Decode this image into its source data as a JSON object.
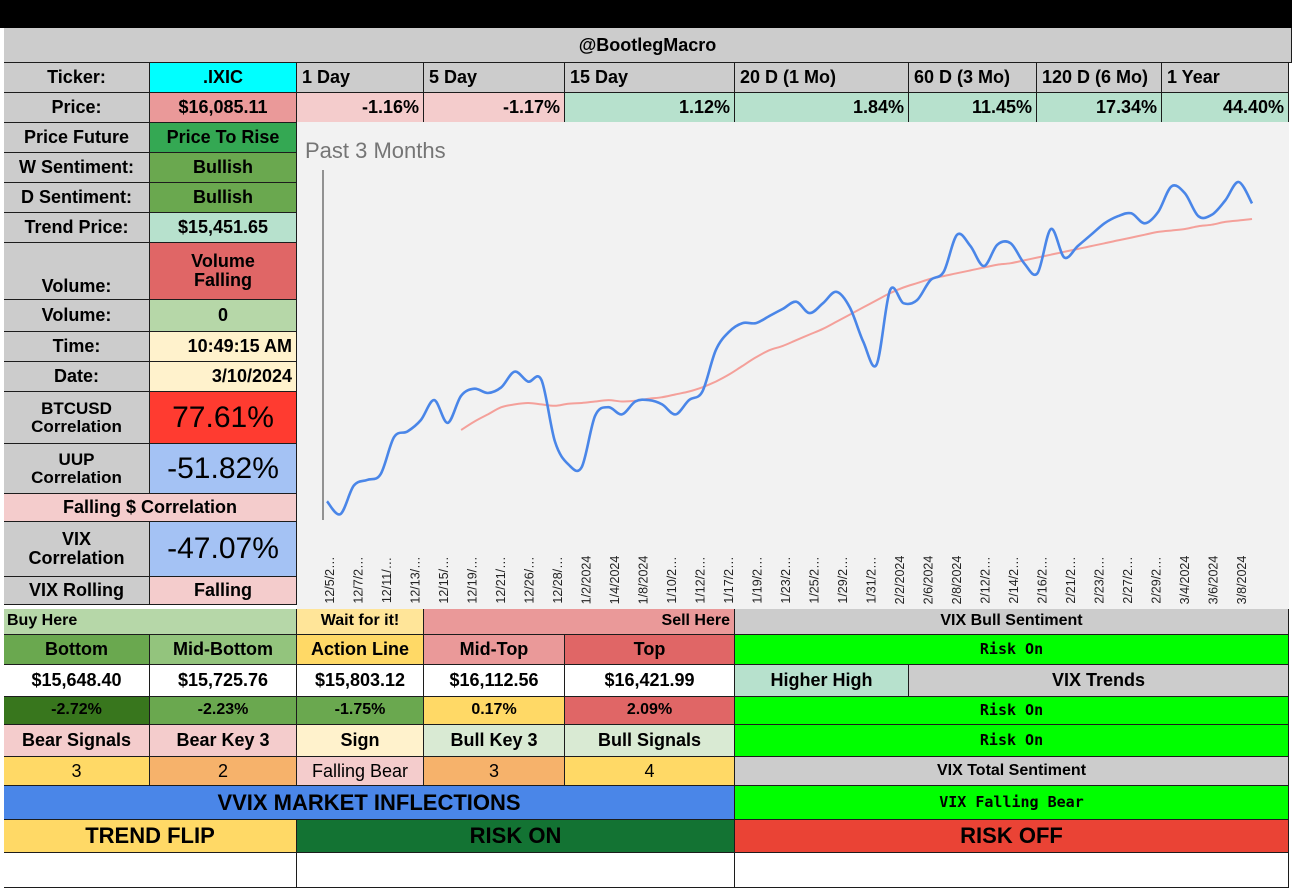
{
  "header": {
    "title": "@BootlegMacro"
  },
  "periods": {
    "ticker_label": "Ticker:",
    "ticker": ".IXIC",
    "labels": [
      "1 Day",
      "5 Day",
      "15 Day",
      "20 D (1 Mo)",
      "60 D (3 Mo)",
      "120 D (6 Mo)",
      "1 Year"
    ],
    "price_label": "Price:",
    "price": "$16,085.11",
    "changes": [
      "-1.16%",
      "-1.17%",
      "1.12%",
      "1.84%",
      "11.45%",
      "17.34%",
      "44.40%"
    ]
  },
  "side": {
    "price_future_label": "Price Future",
    "price_future": "Price To Rise",
    "w_sentiment_label": "W Sentiment:",
    "w_sentiment": "Bullish",
    "d_sentiment_label": "D Sentiment:",
    "d_sentiment": "Bullish",
    "trend_price_label": "Trend Price:",
    "trend_price": "$15,451.65",
    "volume_label": "Volume:",
    "volume_trend_1": "Volume",
    "volume_trend_2": "Falling",
    "volume2_label": "Volume:",
    "volume_value": "0",
    "time_label": "Time:",
    "time": "10:49:15 AM",
    "date_label": "Date:",
    "date": "3/10/2024",
    "btc_label_1": "BTCUSD",
    "btc_label_2": "Correlation",
    "btc_value": "77.61%",
    "uup_label_1": "UUP",
    "uup_label_2": "Correlation",
    "uup_value": "-51.82%",
    "falling_corr": "Falling $ Correlation",
    "vix_label_1": "VIX",
    "vix_label_2": "Correlation",
    "vix_value": "-47.07%",
    "vix_rolling_label": "VIX Rolling",
    "vix_rolling": "Falling"
  },
  "chart_data": {
    "type": "line",
    "title": "Past 3 Months",
    "x_labels": [
      "12/5/2…",
      "12/7/2…",
      "12/11/…",
      "12/13/…",
      "12/15/…",
      "12/19/…",
      "12/21/…",
      "12/26/…",
      "12/28/…",
      "1/2/2024",
      "1/4/2024",
      "1/8/2024",
      "1/10/2…",
      "1/12/2…",
      "1/17/2…",
      "1/19/2…",
      "1/23/2…",
      "1/25/2…",
      "1/29/2…",
      "1/31/2…",
      "2/2/2024",
      "2/6/2024",
      "2/8/2024",
      "2/12/2…",
      "2/14/2…",
      "2/16/2…",
      "2/21/2…",
      "2/23/2…",
      "2/27/2…",
      "2/29/2…",
      "3/4/2024",
      "3/6/2024",
      "3/8/2024"
    ],
    "ylim": [
      13880,
      16300
    ],
    "series": [
      {
        "color": "#4a86e8",
        "values": [
          13990,
          13900,
          14100,
          14140,
          14180,
          14440,
          14480,
          14560,
          14700,
          14540,
          14730,
          14780,
          14750,
          14790,
          14900,
          14830,
          14840,
          14410,
          14250,
          14230,
          14590,
          14650,
          14600,
          14690,
          14700,
          14670,
          14600,
          14700,
          14760,
          15050,
          15180,
          15240,
          15240,
          15290,
          15340,
          15390,
          15310,
          15380,
          15460,
          15350,
          15110,
          14950,
          15470,
          15380,
          15400,
          15540,
          15600,
          15860,
          15780,
          15640,
          15790,
          15800,
          15660,
          15590,
          15900,
          15700,
          15780,
          15860,
          15940,
          15990,
          16010,
          15940,
          16020,
          16200,
          16150,
          15990,
          16000,
          16100,
          16230,
          16080
        ]
      },
      {
        "color": "#f4a09a",
        "values": [
          14490,
          14550,
          14600,
          14650,
          14670,
          14680,
          14670,
          14660,
          14675,
          14680,
          14690,
          14700,
          14690,
          14695,
          14710,
          14720,
          14740,
          14760,
          14790,
          14830,
          14880,
          14940,
          15000,
          15050,
          15080,
          15120,
          15160,
          15200,
          15250,
          15300,
          15350,
          15400,
          15450,
          15490,
          15520,
          15550,
          15570,
          15590,
          15610,
          15630,
          15650,
          15660,
          15680,
          15700,
          15720,
          15740,
          15760,
          15780,
          15800,
          15820,
          15840,
          15860,
          15880,
          15890,
          15900,
          15920,
          15930,
          15950,
          15960,
          15970
        ]
      }
    ]
  },
  "levels": {
    "buy_here": "Buy Here",
    "wait": "Wait for it!",
    "sell_here": "Sell Here",
    "names": [
      "Bottom",
      "Mid-Bottom",
      "Action Line",
      "Mid-Top",
      "Top"
    ],
    "values": [
      "$15,648.40",
      "$15,725.76",
      "$15,803.12",
      "$16,112.56",
      "$16,421.99"
    ],
    "pcts": [
      "-2.72%",
      "-2.23%",
      "-1.75%",
      "0.17%",
      "2.09%"
    ]
  },
  "signals": {
    "names": [
      "Bear Signals",
      "Bear Key 3",
      "Sign",
      "Bull Key 3",
      "Bull Signals"
    ],
    "values": [
      "3",
      "2",
      "Falling Bear",
      "3",
      "4"
    ]
  },
  "vix": {
    "bull_sentiment_label": "VIX Bull Sentiment",
    "risk_on_1": "Risk On",
    "higher_high": "Higher High",
    "trends_label": "VIX Trends",
    "risk_on_2": "Risk On",
    "risk_on_3": "Risk On",
    "total_sentiment_label": "VIX Total Sentiment",
    "total_sentiment": "VIX Falling Bear"
  },
  "inflections": {
    "title": "VVIX MARKET INFLECTIONS",
    "trend_flip": "TREND FLIP",
    "risk_on": "RISK ON",
    "risk_off": "RISK OFF"
  },
  "colors": {
    "header_gray": "#cccccc",
    "cyan": "#00ffff",
    "light_red": "#f4cccc",
    "light_green": "#b7e1cd",
    "green": "#6aa84f",
    "red": "#ff3b30",
    "blue_gray": "#a4c2f4",
    "bright_green": "#00ff00",
    "blue": "#4a86e8",
    "dark_green": "#137333",
    "yellow": "#ffd966",
    "orange": "#f6b26b"
  }
}
